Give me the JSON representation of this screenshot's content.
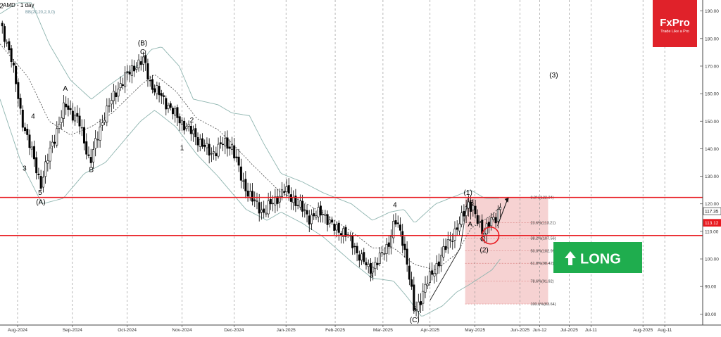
{
  "header": {
    "title": "AMD - 1 day",
    "indicator_label": "BB(20,20,2,0,0)"
  },
  "logo": {
    "brand": "FxPro",
    "tagline": "Trade Like a Pro",
    "color": "#e0222a"
  },
  "long_badge": {
    "label": "LONG",
    "color": "#1fad4e"
  },
  "colors": {
    "bullish": "#ffffff",
    "bearish": "#000000",
    "band": "#8fb5b0",
    "mid_band": "#555555",
    "level_line": "#e8191f",
    "fib_zone": "#f6d2d2",
    "grid": "#8a8a8a"
  },
  "chart_data": {
    "type": "candlestick",
    "title": "AMD - 1 day",
    "xlabel": "",
    "ylabel": "",
    "ylim": [
      76,
      194
    ],
    "y_ticks": [
      80,
      90,
      100,
      110,
      120,
      130,
      140,
      150,
      160,
      170,
      180,
      190
    ],
    "x_ticks": [
      "Aug-2024",
      "Sep-2024",
      "Oct-2024",
      "Nov-2024",
      "Dec-2024",
      "Jan-2025",
      "Feb-2025",
      "Mar-2025",
      "Apr-2025",
      "May-2025",
      "Jun-2025",
      "Jun-12",
      "Jul-2025",
      "Jul-11",
      "Aug-2025",
      "Aug-11"
    ],
    "x_tick_pos": [
      0.025,
      0.103,
      0.181,
      0.259,
      0.333,
      0.407,
      0.477,
      0.545,
      0.612,
      0.676,
      0.74,
      0.768,
      0.81,
      0.841,
      0.915,
      0.946
    ],
    "price_labels": [
      {
        "text": "117.35",
        "value": 117.35,
        "kind": "outline"
      },
      {
        "text": "113.12",
        "value": 113.12,
        "kind": "red"
      }
    ],
    "key_levels": [
      122.34,
      108.5
    ],
    "fibonacci": {
      "levels": [
        {
          "label": "0.0%(122.34)",
          "value": 122.34
        },
        {
          "label": "23.6%(113.21)",
          "value": 113.21
        },
        {
          "label": "38.2%(107.56)",
          "value": 107.56
        },
        {
          "label": "50.0%(102.99)",
          "value": 102.99
        },
        {
          "label": "61.8%(98.42)",
          "value": 98.42
        },
        {
          "label": "78.6%(91.92)",
          "value": 91.92
        },
        {
          "label": "100.0%(83.64)",
          "value": 83.64
        }
      ],
      "x_start_frac": 0.662,
      "x_end_frac": 0.78
    },
    "wave_labels": [
      {
        "text": "2",
        "t": 0.002,
        "v": 191
      },
      {
        "text": "4",
        "t": 0.047,
        "v": 151
      },
      {
        "text": "3",
        "t": 0.035,
        "v": 132
      },
      {
        "text": "5",
        "t": 0.057,
        "v": 123.2
      },
      {
        "text": "(A)",
        "t": 0.058,
        "v": 119.8
      },
      {
        "text": "A",
        "t": 0.093,
        "v": 161
      },
      {
        "text": "B",
        "t": 0.13,
        "v": 131.5
      },
      {
        "text": "(B)",
        "t": 0.203,
        "v": 177.5
      },
      {
        "text": "C",
        "t": 0.203,
        "v": 174.3
      },
      {
        "text": "2",
        "t": 0.273,
        "v": 149.5
      },
      {
        "text": "1",
        "t": 0.259,
        "v": 139.5
      },
      {
        "text": "4",
        "t": 0.562,
        "v": 118.8
      },
      {
        "text": "3",
        "t": 0.528,
        "v": 93.2
      },
      {
        "text": "5",
        "t": 0.59,
        "v": 81
      },
      {
        "text": "(C)",
        "t": 0.59,
        "v": 77
      },
      {
        "text": "(1)",
        "t": 0.666,
        "v": 123.3
      },
      {
        "text": "B",
        "t": 0.671,
        "v": 119.5
      },
      {
        "text": "A",
        "t": 0.669,
        "v": 111.8
      },
      {
        "text": "C",
        "t": 0.687,
        "v": 106.4
      },
      {
        "text": "(2)",
        "t": 0.689,
        "v": 102.4
      },
      {
        "text": "(3)",
        "t": 0.788,
        "v": 165.9
      }
    ],
    "series": [
      {
        "name": "Price",
        "anchors": [
          [
            0.0,
            185
          ],
          [
            0.015,
            175
          ],
          [
            0.03,
            152
          ],
          [
            0.046,
            138
          ],
          [
            0.058,
            127
          ],
          [
            0.072,
            140
          ],
          [
            0.093,
            156
          ],
          [
            0.112,
            150
          ],
          [
            0.128,
            135
          ],
          [
            0.148,
            152
          ],
          [
            0.17,
            163
          ],
          [
            0.191,
            170
          ],
          [
            0.205,
            172
          ],
          [
            0.215,
            163
          ],
          [
            0.233,
            158
          ],
          [
            0.25,
            152
          ],
          [
            0.265,
            148
          ],
          [
            0.28,
            144
          ],
          [
            0.3,
            138
          ],
          [
            0.318,
            142
          ],
          [
            0.33,
            141
          ],
          [
            0.345,
            128
          ],
          [
            0.36,
            121
          ],
          [
            0.375,
            117
          ],
          [
            0.39,
            121
          ],
          [
            0.405,
            125
          ],
          [
            0.42,
            121
          ],
          [
            0.44,
            115
          ],
          [
            0.46,
            117
          ],
          [
            0.475,
            111
          ],
          [
            0.49,
            110
          ],
          [
            0.505,
            104
          ],
          [
            0.525,
            96
          ],
          [
            0.54,
            100
          ],
          [
            0.552,
            105
          ],
          [
            0.562,
            114
          ],
          [
            0.572,
            108
          ],
          [
            0.58,
            98
          ],
          [
            0.59,
            80
          ],
          [
            0.605,
            90
          ],
          [
            0.622,
            98
          ],
          [
            0.64,
            107
          ],
          [
            0.655,
            113
          ],
          [
            0.666,
            121
          ],
          [
            0.673,
            118
          ],
          [
            0.68,
            113
          ],
          [
            0.688,
            110
          ],
          [
            0.695,
            113
          ],
          [
            0.705,
            114
          ],
          [
            0.712,
            120
          ]
        ]
      },
      {
        "name": "Middle band",
        "anchors": [
          [
            0.0,
            178
          ],
          [
            0.04,
            166
          ],
          [
            0.07,
            150
          ],
          [
            0.1,
            145
          ],
          [
            0.13,
            148
          ],
          [
            0.16,
            153
          ],
          [
            0.2,
            163
          ],
          [
            0.22,
            167
          ],
          [
            0.25,
            161
          ],
          [
            0.28,
            151
          ],
          [
            0.31,
            147
          ],
          [
            0.33,
            142
          ],
          [
            0.36,
            134
          ],
          [
            0.4,
            124
          ],
          [
            0.43,
            121
          ],
          [
            0.47,
            115
          ],
          [
            0.5,
            110
          ],
          [
            0.53,
            104
          ],
          [
            0.56,
            104
          ],
          [
            0.59,
            98
          ],
          [
            0.62,
            96
          ],
          [
            0.65,
            102
          ],
          [
            0.67,
            111
          ],
          [
            0.7,
            116
          ],
          [
            0.712,
            119
          ]
        ]
      },
      {
        "name": "Upper band",
        "anchors": [
          [
            0.0,
            189
          ],
          [
            0.025,
            193
          ],
          [
            0.045,
            193
          ],
          [
            0.07,
            178
          ],
          [
            0.1,
            165
          ],
          [
            0.13,
            158
          ],
          [
            0.155,
            163
          ],
          [
            0.2,
            171
          ],
          [
            0.215,
            176
          ],
          [
            0.23,
            177
          ],
          [
            0.255,
            170
          ],
          [
            0.275,
            158
          ],
          [
            0.31,
            156
          ],
          [
            0.33,
            153
          ],
          [
            0.355,
            152
          ],
          [
            0.375,
            142
          ],
          [
            0.4,
            131
          ],
          [
            0.43,
            128
          ],
          [
            0.46,
            124
          ],
          [
            0.5,
            120
          ],
          [
            0.53,
            114
          ],
          [
            0.555,
            117
          ],
          [
            0.575,
            118
          ],
          [
            0.59,
            113
          ],
          [
            0.62,
            120
          ],
          [
            0.65,
            123
          ],
          [
            0.67,
            125
          ],
          [
            0.69,
            122
          ],
          [
            0.71,
            122
          ]
        ]
      },
      {
        "name": "Lower band",
        "anchors": [
          [
            0.0,
            158
          ],
          [
            0.03,
            135
          ],
          [
            0.06,
            120
          ],
          [
            0.09,
            122
          ],
          [
            0.12,
            131
          ],
          [
            0.15,
            135
          ],
          [
            0.18,
            144
          ],
          [
            0.2,
            150
          ],
          [
            0.22,
            154
          ],
          [
            0.25,
            148
          ],
          [
            0.28,
            138
          ],
          [
            0.31,
            130
          ],
          [
            0.35,
            118
          ],
          [
            0.38,
            114
          ],
          [
            0.4,
            117
          ],
          [
            0.43,
            113
          ],
          [
            0.46,
            108
          ],
          [
            0.5,
            99
          ],
          [
            0.53,
            93
          ],
          [
            0.56,
            92
          ],
          [
            0.58,
            86
          ],
          [
            0.6,
            79
          ],
          [
            0.63,
            83
          ],
          [
            0.65,
            88
          ],
          [
            0.67,
            91
          ],
          [
            0.7,
            96
          ],
          [
            0.712,
            100
          ]
        ]
      }
    ]
  }
}
